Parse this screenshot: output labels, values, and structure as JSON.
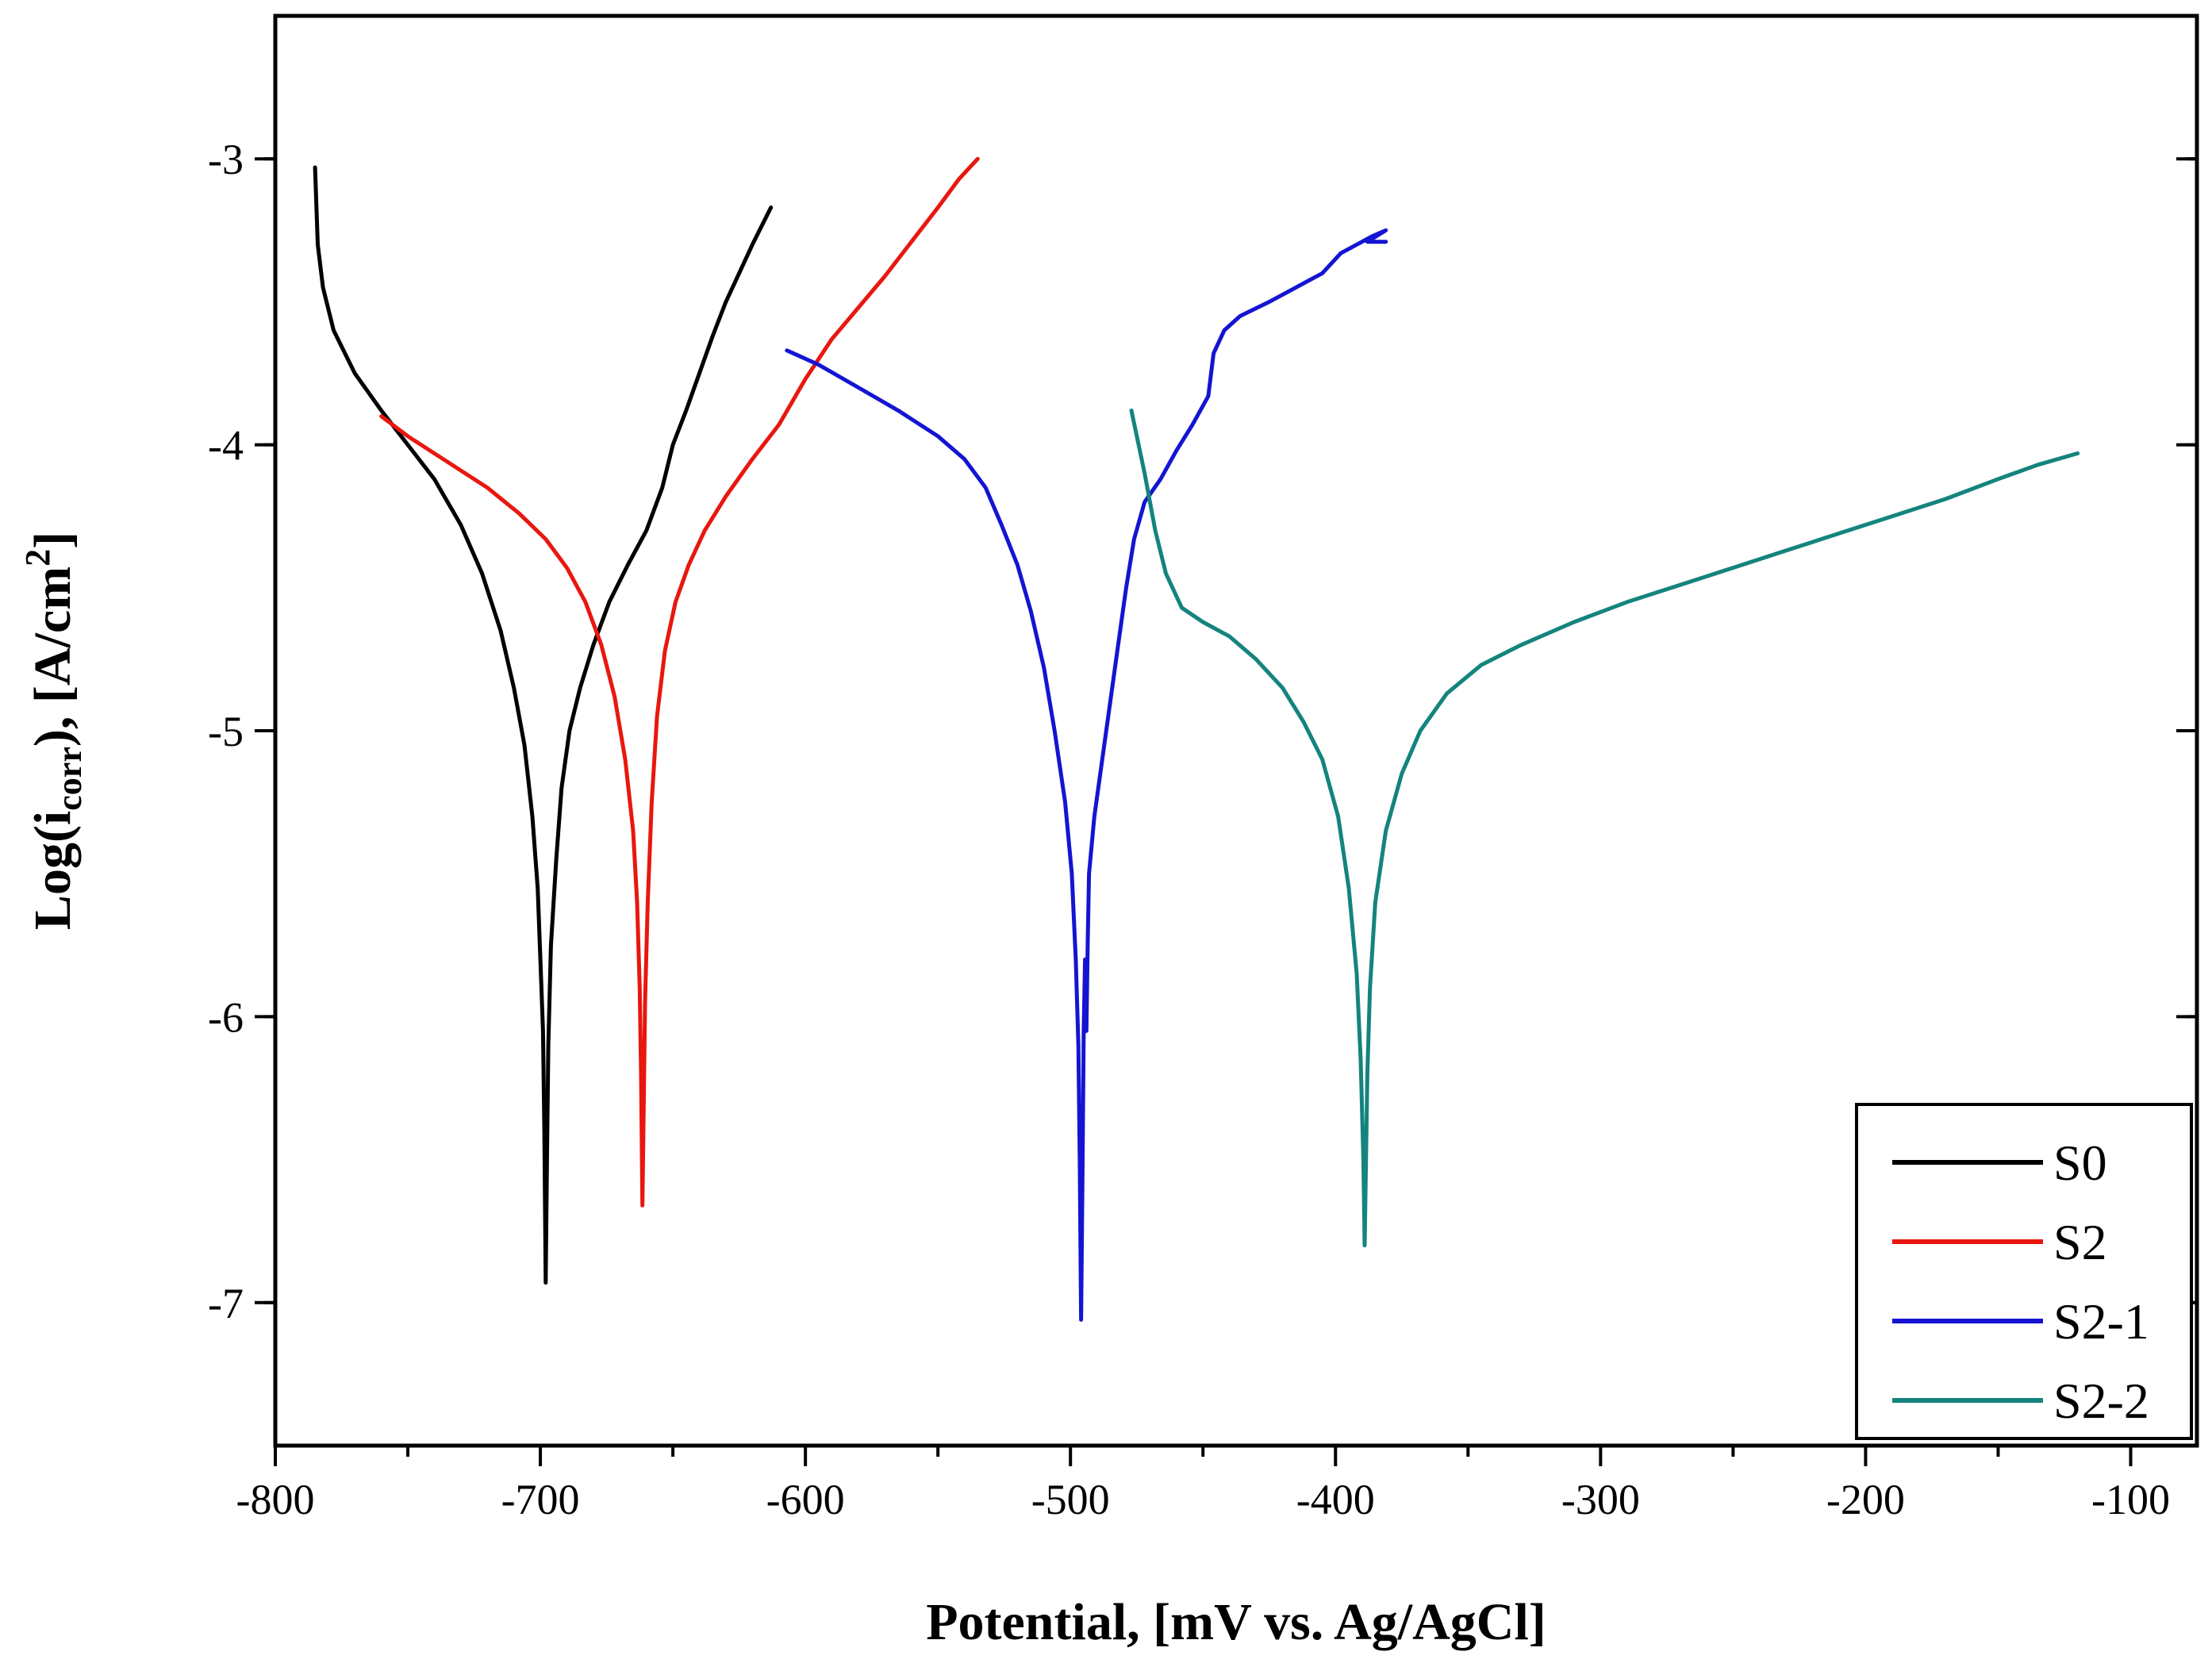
{
  "chart_data": {
    "type": "line",
    "title": "",
    "xlabel": "Potential, [mV vs. Ag/AgCl]",
    "ylabel": {
      "main": "Log(i",
      "sub": "corr",
      "mid": "), [A/cm",
      "sup": "2",
      "end": "]"
    },
    "xlim": [
      -800,
      -75
    ],
    "ylim": [
      -7.5,
      -2.5
    ],
    "xticks": [
      -800,
      -700,
      -600,
      -500,
      -400,
      -300,
      -200,
      -100
    ],
    "xtick_labels": [
      "-800",
      "-700",
      "-600",
      "-500",
      "-400",
      "-300",
      "-200",
      "-100"
    ],
    "yticks": [
      -7,
      -6,
      -5,
      -4,
      -3
    ],
    "ytick_labels": [
      "-7",
      "-6",
      "-5",
      "-4",
      "-3"
    ],
    "grid": false,
    "legend_position": "bottom-right",
    "series": [
      {
        "name": "S0",
        "color": "#000000",
        "points": [
          [
            -785,
            -3.03
          ],
          [
            -784,
            -3.3
          ],
          [
            -782,
            -3.45
          ],
          [
            -778,
            -3.6
          ],
          [
            -770,
            -3.75
          ],
          [
            -760,
            -3.88
          ],
          [
            -750,
            -4.0
          ],
          [
            -740,
            -4.12
          ],
          [
            -730,
            -4.28
          ],
          [
            -722,
            -4.45
          ],
          [
            -715,
            -4.65
          ],
          [
            -710,
            -4.85
          ],
          [
            -706,
            -5.05
          ],
          [
            -703,
            -5.3
          ],
          [
            -701,
            -5.55
          ],
          [
            -700,
            -5.8
          ],
          [
            -699,
            -6.05
          ],
          [
            -698.5,
            -6.4
          ],
          [
            -698,
            -6.93
          ],
          [
            -697.5,
            -6.5
          ],
          [
            -697,
            -6.1
          ],
          [
            -696,
            -5.75
          ],
          [
            -694,
            -5.45
          ],
          [
            -692,
            -5.2
          ],
          [
            -689,
            -5.0
          ],
          [
            -685,
            -4.85
          ],
          [
            -680,
            -4.7
          ],
          [
            -674,
            -4.55
          ],
          [
            -667,
            -4.42
          ],
          [
            -660,
            -4.3
          ],
          [
            -654,
            -4.15
          ],
          [
            -650,
            -4.0
          ],
          [
            -645,
            -3.88
          ],
          [
            -640,
            -3.75
          ],
          [
            -635,
            -3.62
          ],
          [
            -630,
            -3.5
          ],
          [
            -625,
            -3.4
          ],
          [
            -620,
            -3.3
          ],
          [
            -613,
            -3.17
          ]
        ]
      },
      {
        "name": "S2",
        "color": "#e8170f",
        "points": [
          [
            -760,
            -3.9
          ],
          [
            -750,
            -3.97
          ],
          [
            -735,
            -4.06
          ],
          [
            -720,
            -4.15
          ],
          [
            -708,
            -4.24
          ],
          [
            -698,
            -4.33
          ],
          [
            -690,
            -4.43
          ],
          [
            -683,
            -4.55
          ],
          [
            -677,
            -4.7
          ],
          [
            -672,
            -4.88
          ],
          [
            -668,
            -5.1
          ],
          [
            -665,
            -5.35
          ],
          [
            -663.5,
            -5.6
          ],
          [
            -662.5,
            -5.9
          ],
          [
            -662,
            -6.2
          ],
          [
            -661.5,
            -6.66
          ],
          [
            -661,
            -6.3
          ],
          [
            -660.5,
            -5.95
          ],
          [
            -659.5,
            -5.6
          ],
          [
            -658,
            -5.25
          ],
          [
            -656,
            -4.95
          ],
          [
            -653,
            -4.72
          ],
          [
            -649,
            -4.55
          ],
          [
            -644,
            -4.42
          ],
          [
            -638,
            -4.3
          ],
          [
            -630,
            -4.18
          ],
          [
            -620,
            -4.05
          ],
          [
            -610,
            -3.93
          ],
          [
            -600,
            -3.77
          ],
          [
            -590,
            -3.63
          ],
          [
            -580,
            -3.52
          ],
          [
            -570,
            -3.41
          ],
          [
            -560,
            -3.29
          ],
          [
            -550,
            -3.17
          ],
          [
            -542,
            -3.07
          ],
          [
            -535,
            -3.0
          ]
        ]
      },
      {
        "name": "S2-1",
        "color": "#1414d2",
        "points": [
          [
            -607,
            -3.67
          ],
          [
            -595,
            -3.72
          ],
          [
            -580,
            -3.8
          ],
          [
            -565,
            -3.88
          ],
          [
            -550,
            -3.97
          ],
          [
            -540,
            -4.05
          ],
          [
            -532,
            -4.15
          ],
          [
            -526,
            -4.28
          ],
          [
            -520,
            -4.42
          ],
          [
            -515,
            -4.58
          ],
          [
            -510,
            -4.78
          ],
          [
            -506,
            -5.0
          ],
          [
            -502,
            -5.25
          ],
          [
            -499.5,
            -5.5
          ],
          [
            -498,
            -5.8
          ],
          [
            -497,
            -6.1
          ],
          [
            -496.5,
            -6.5
          ],
          [
            -496,
            -7.06
          ],
          [
            -495.5,
            -6.6
          ],
          [
            -495,
            -6.05
          ],
          [
            -494.5,
            -5.8
          ],
          [
            -494,
            -6.05
          ],
          [
            -493.5,
            -5.75
          ],
          [
            -493,
            -5.5
          ],
          [
            -491,
            -5.3
          ],
          [
            -488,
            -5.1
          ],
          [
            -485,
            -4.9
          ],
          [
            -482,
            -4.7
          ],
          [
            -479,
            -4.5
          ],
          [
            -476,
            -4.33
          ],
          [
            -472,
            -4.2
          ],
          [
            -466,
            -4.12
          ],
          [
            -460,
            -4.02
          ],
          [
            -454,
            -3.93
          ],
          [
            -448,
            -3.83
          ],
          [
            -446,
            -3.68
          ],
          [
            -442,
            -3.6
          ],
          [
            -436,
            -3.55
          ],
          [
            -425,
            -3.5
          ],
          [
            -415,
            -3.45
          ],
          [
            -405,
            -3.4
          ],
          [
            -398,
            -3.33
          ],
          [
            -392,
            -3.3
          ],
          [
            -386,
            -3.27
          ],
          [
            -381,
            -3.25
          ],
          [
            -388,
            -3.29
          ],
          [
            -381,
            -3.29
          ]
        ]
      },
      {
        "name": "S2-2",
        "color": "#14847d",
        "points": [
          [
            -477,
            -3.88
          ],
          [
            -472,
            -4.1
          ],
          [
            -468,
            -4.3
          ],
          [
            -464,
            -4.45
          ],
          [
            -458,
            -4.57
          ],
          [
            -450,
            -4.62
          ],
          [
            -440,
            -4.67
          ],
          [
            -430,
            -4.75
          ],
          [
            -420,
            -4.85
          ],
          [
            -412,
            -4.97
          ],
          [
            -405,
            -5.1
          ],
          [
            -399,
            -5.3
          ],
          [
            -395,
            -5.55
          ],
          [
            -392,
            -5.85
          ],
          [
            -390.5,
            -6.15
          ],
          [
            -389.5,
            -6.5
          ],
          [
            -389,
            -6.8
          ],
          [
            -388.5,
            -6.5
          ],
          [
            -388,
            -6.2
          ],
          [
            -387,
            -5.9
          ],
          [
            -385,
            -5.6
          ],
          [
            -381,
            -5.35
          ],
          [
            -375,
            -5.15
          ],
          [
            -368,
            -5.0
          ],
          [
            -358,
            -4.87
          ],
          [
            -345,
            -4.77
          ],
          [
            -330,
            -4.7
          ],
          [
            -310,
            -4.62
          ],
          [
            -290,
            -4.55
          ],
          [
            -270,
            -4.49
          ],
          [
            -250,
            -4.43
          ],
          [
            -230,
            -4.37
          ],
          [
            -210,
            -4.31
          ],
          [
            -190,
            -4.25
          ],
          [
            -170,
            -4.19
          ],
          [
            -150,
            -4.12
          ],
          [
            -135,
            -4.07
          ],
          [
            -120,
            -4.03
          ]
        ]
      }
    ]
  }
}
